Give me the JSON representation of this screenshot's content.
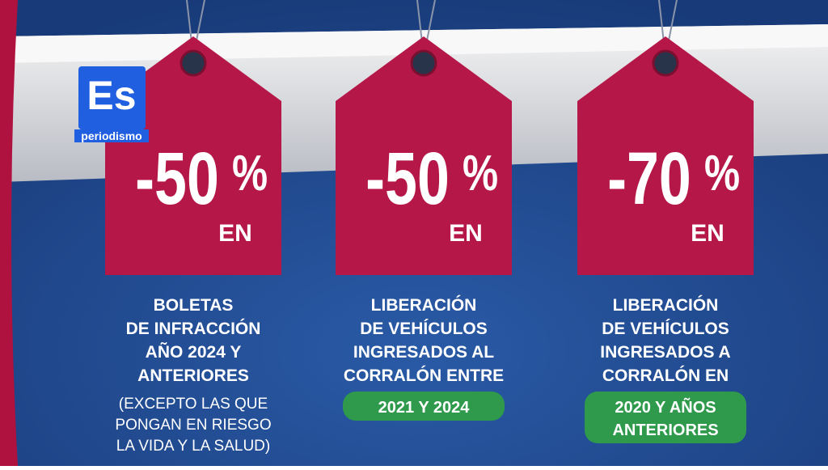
{
  "logo": {
    "mark": "Es",
    "name": "periodismo"
  },
  "tags": [
    {
      "amount": "-50",
      "symbol": "%",
      "suffix": "EN",
      "lines": [
        "BOLETAS",
        "DE INFRACCIÓN",
        "AÑO 2024 Y",
        "ANTERIORES"
      ],
      "note": [
        "(EXCEPTO LAS QUE",
        "PONGAN EN RIESGO",
        "LA VIDA Y LA SALUD)"
      ]
    },
    {
      "amount": "-50",
      "symbol": "%",
      "suffix": "EN",
      "lines": [
        "LIBERACIÓN",
        "DE VEHÍCULOS",
        "INGRESADOS AL",
        "CORRALÓN ENTRE"
      ],
      "highlight": [
        "2021 Y 2024"
      ]
    },
    {
      "amount": "-70",
      "symbol": "%",
      "suffix": "EN",
      "lines": [
        "LIBERACIÓN",
        "DE VEHÍCULOS",
        "INGRESADOS A",
        "CORRALÓN EN"
      ],
      "highlight": [
        "2020 Y AÑOS",
        "ANTERIORES"
      ]
    }
  ]
}
